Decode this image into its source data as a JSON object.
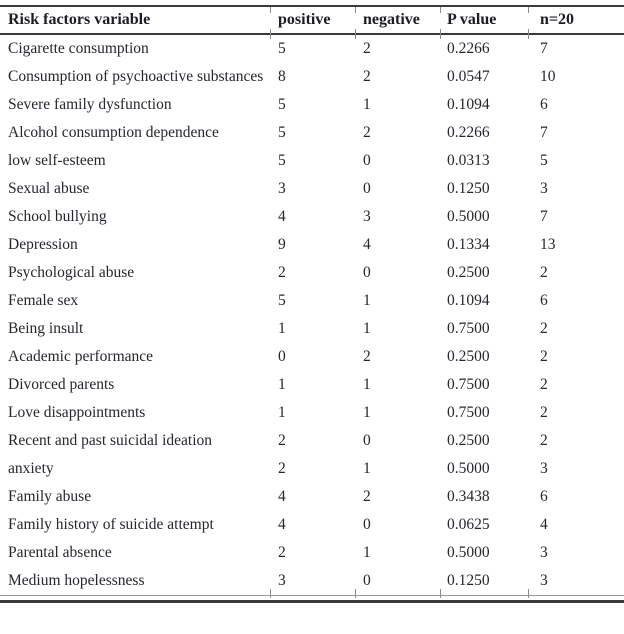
{
  "table": {
    "columns": [
      {
        "label": "Risk factors variable"
      },
      {
        "label": "positive"
      },
      {
        "label": "negative"
      },
      {
        "label": "P value"
      },
      {
        "label": "n=20"
      }
    ],
    "rows": [
      {
        "variable": "Cigarette consumption",
        "positive": "5",
        "negative": "2",
        "p_value": "0.2266",
        "n": "7"
      },
      {
        "variable": "Consumption of psychoactive substances",
        "positive": "8",
        "negative": "2",
        "p_value": "0.0547",
        "n": "10"
      },
      {
        "variable": "Severe family dysfunction",
        "positive": "5",
        "negative": "1",
        "p_value": "0.1094",
        "n": "6"
      },
      {
        "variable": "Alcohol consumption dependence",
        "positive": "5",
        "negative": "2",
        "p_value": "0.2266",
        "n": "7"
      },
      {
        "variable": "low self-esteem",
        "positive": "5",
        "negative": "0",
        "p_value": "0.0313",
        "n": "5"
      },
      {
        "variable": "Sexual abuse",
        "positive": "3",
        "negative": "0",
        "p_value": "0.1250",
        "n": "3"
      },
      {
        "variable": "School bullying",
        "positive": "4",
        "negative": "3",
        "p_value": "0.5000",
        "n": "7"
      },
      {
        "variable": "Depression",
        "positive": "9",
        "negative": "4",
        "p_value": "0.1334",
        "n": "13"
      },
      {
        "variable": "Psychological abuse",
        "positive": "2",
        "negative": "0",
        "p_value": "0.2500",
        "n": "2"
      },
      {
        "variable": "Female sex",
        "positive": "5",
        "negative": "1",
        "p_value": "0.1094",
        "n": "6"
      },
      {
        "variable": "Being insult",
        "positive": "1",
        "negative": "1",
        "p_value": "0.7500",
        "n": "2"
      },
      {
        "variable": "Academic performance",
        "positive": "0",
        "negative": "2",
        "p_value": "0.2500",
        "n": "2"
      },
      {
        "variable": "Divorced parents",
        "positive": "1",
        "negative": "1",
        "p_value": "0.7500",
        "n": "2"
      },
      {
        "variable": "Love disappointments",
        "positive": "1",
        "negative": "1",
        "p_value": "0.7500",
        "n": "2"
      },
      {
        "variable": "Recent and past suicidal ideation",
        "positive": "2",
        "negative": "0",
        "p_value": "0.2500",
        "n": "2"
      },
      {
        "variable": "anxiety",
        "positive": "2",
        "negative": "1",
        "p_value": "0.5000",
        "n": "3"
      },
      {
        "variable": "Family abuse",
        "positive": "4",
        "negative": "2",
        "p_value": "0.3438",
        "n": "6"
      },
      {
        "variable": "Family history of suicide attempt",
        "positive": "4",
        "negative": "0",
        "p_value": "0.0625",
        "n": "4"
      },
      {
        "variable": "Parental absence",
        "positive": "2",
        "negative": "1",
        "p_value": "0.5000",
        "n": "3"
      },
      {
        "variable": "Medium hopelessness",
        "positive": "3",
        "negative": "0",
        "p_value": "0.1250",
        "n": "3"
      }
    ]
  },
  "colors": {
    "text": "#26262e",
    "rule_dark": "#3a3a3a",
    "rule_light": "#9b9b9b"
  }
}
